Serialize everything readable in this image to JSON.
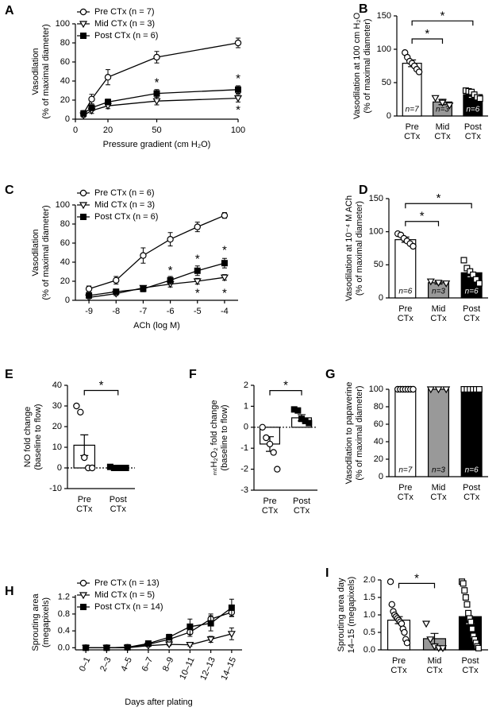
{
  "chart_data": [
    {
      "type": "line",
      "panel": "A",
      "xlabel": "Pressure gradient (cm H₂O)",
      "ylabel": [
        "Vasodilation",
        "(% of maximal diameter)"
      ],
      "x": [
        5,
        10,
        20,
        50,
        100
      ],
      "xlim": [
        0,
        100
      ],
      "xticks": [
        0,
        20,
        50,
        100
      ],
      "ylim": [
        0,
        100
      ],
      "yticks": [
        0,
        20,
        40,
        60,
        80,
        100
      ],
      "legend": "upper left",
      "series": [
        {
          "name": "Pre CTx (n = 7)",
          "color": "#000",
          "marker": "circle-open",
          "values": [
            6,
            21,
            44,
            65,
            80
          ],
          "errors": [
            3,
            5,
            8,
            6,
            5
          ]
        },
        {
          "name": "Mid CTx (n = 3)",
          "color": "#000",
          "marker": "triangle-open",
          "values": [
            4,
            9,
            14,
            19,
            22
          ],
          "errors": [
            2,
            3,
            3,
            4,
            4
          ]
        },
        {
          "name": "Post CTx (n = 6)",
          "color": "#000",
          "marker": "square-filled",
          "values": [
            6,
            12,
            18,
            27,
            31
          ],
          "errors": [
            2,
            3,
            3,
            4,
            4
          ]
        }
      ],
      "annotations": [
        {
          "text": "*",
          "x": 50,
          "y": 38
        },
        {
          "text": "*",
          "x": 100,
          "y": 42
        },
        {
          "text": "*",
          "x": 100,
          "y": 9
        }
      ]
    },
    {
      "type": "bar",
      "panel": "B",
      "ylabel": [
        "Vasodilation at 100 cm H₂O",
        "(% of maximal diameter)"
      ],
      "categories": [
        [
          "Pre",
          "CTx"
        ],
        [
          "Mid",
          "CTx"
        ],
        [
          "Post",
          "CTx"
        ]
      ],
      "values": [
        79,
        21,
        32
      ],
      "errors": [
        5,
        4,
        4
      ],
      "colors": [
        "#fff",
        "#999",
        "#000"
      ],
      "point_markers": [
        "circle-open",
        "triangle-open",
        "square-open"
      ],
      "points": [
        [
          95,
          88,
          82,
          79,
          75,
          70,
          66
        ],
        [
          27,
          20,
          16
        ],
        [
          38,
          37,
          36,
          32,
          28,
          26
        ]
      ],
      "bar_labels": [
        "n=7",
        "n=3",
        "n=6"
      ],
      "ylim": [
        0,
        150
      ],
      "yticks": [
        0,
        50,
        100,
        150
      ],
      "brackets": [
        {
          "from": 0,
          "to": 1,
          "text": "*"
        },
        {
          "from": 0,
          "to": 2,
          "text": "*"
        }
      ]
    },
    {
      "type": "line",
      "panel": "C",
      "xlabel": "ACh (log M)",
      "ylabel": [
        "Vasodilation",
        "(% of maximal diameter)"
      ],
      "x": [
        -9,
        -8,
        -7,
        -6,
        -5,
        -4
      ],
      "xlim": [
        -9.5,
        -3.5
      ],
      "xticks": [
        -9,
        -8,
        -7,
        -6,
        -5,
        -4
      ],
      "ylim": [
        0,
        100
      ],
      "yticks": [
        0,
        20,
        40,
        60,
        80,
        100
      ],
      "legend": "upper left",
      "series": [
        {
          "name": "Pre CTx (n = 6)",
          "color": "#000",
          "marker": "circle-open",
          "values": [
            12,
            21,
            47,
            64,
            77,
            89
          ],
          "errors": [
            3,
            4,
            8,
            7,
            5,
            3
          ]
        },
        {
          "name": "Mid CTx (n = 3)",
          "color": "#000",
          "marker": "triangle-open",
          "values": [
            3,
            7,
            13,
            17,
            20,
            24
          ],
          "errors": [
            1,
            2,
            2,
            3,
            3,
            3
          ]
        },
        {
          "name": "Post CTx (n = 6)",
          "color": "#000",
          "marker": "square-filled",
          "values": [
            5,
            9,
            12,
            21,
            31,
            39
          ],
          "errors": [
            1,
            2,
            3,
            4,
            5,
            5
          ]
        }
      ],
      "annotations": [
        {
          "text": "*",
          "x": -6,
          "y": 31
        },
        {
          "text": "*",
          "x": -5,
          "y": 43
        },
        {
          "text": "*",
          "x": -4,
          "y": 52
        },
        {
          "text": "*",
          "x": -5,
          "y": 7
        },
        {
          "text": "*",
          "x": -4,
          "y": 7
        }
      ]
    },
    {
      "type": "bar",
      "panel": "D",
      "ylabel": [
        "Vasodilation at 10⁻⁴ M ACh",
        "(% of maximal diameter)"
      ],
      "categories": [
        [
          "Pre",
          "CTx"
        ],
        [
          "Mid",
          "CTx"
        ],
        [
          "Post",
          "CTx"
        ]
      ],
      "values": [
        88,
        23,
        38
      ],
      "errors": [
        4,
        2,
        6
      ],
      "colors": [
        "#fff",
        "#999",
        "#000"
      ],
      "point_markers": [
        "circle-open",
        "triangle-open",
        "square-open"
      ],
      "points": [
        [
          97,
          95,
          90,
          86,
          82,
          78
        ],
        [
          25,
          23,
          22
        ],
        [
          57,
          45,
          40,
          35,
          28,
          22
        ]
      ],
      "bar_labels": [
        "n=6",
        "n=3",
        "n=6"
      ],
      "ylim": [
        0,
        150
      ],
      "yticks": [
        0,
        50,
        100,
        150
      ],
      "brackets": [
        {
          "from": 0,
          "to": 1,
          "text": "*"
        },
        {
          "from": 0,
          "to": 2,
          "text": "*"
        }
      ]
    },
    {
      "type": "bar",
      "panel": "E",
      "ylabel": [
        "NO fold change",
        "(baseline to flow)"
      ],
      "categories": [
        [
          "Pre",
          "CTx"
        ],
        [
          "Post",
          "CTx"
        ]
      ],
      "values": [
        11,
        0.2
      ],
      "errors": [
        5,
        0.3
      ],
      "colors": [
        "#fff",
        "#fff"
      ],
      "point_markers": [
        "circle-open",
        "square-filled"
      ],
      "points": [
        [
          30,
          27,
          5,
          0,
          0
        ],
        [
          0.5,
          0,
          0,
          0,
          0
        ]
      ],
      "zero_line": true,
      "ylim": [
        -10,
        40
      ],
      "yticks": [
        -10,
        0,
        10,
        20,
        30,
        40
      ],
      "brackets": [
        {
          "from": 0,
          "to": 1,
          "text": "*"
        }
      ]
    },
    {
      "type": "bar",
      "panel": "F",
      "ylabel": [
        "ₘₜH₂O₂ fold change",
        "(baseline to flow)"
      ],
      "categories": [
        [
          "Pre",
          "CTx"
        ],
        [
          "Post",
          "CTx"
        ]
      ],
      "values": [
        -0.8,
        0.45
      ],
      "errors": [
        0.35,
        0.15
      ],
      "colors": [
        "#fff",
        "#fff"
      ],
      "point_markers": [
        "circle-open",
        "square-filled"
      ],
      "points": [
        [
          0,
          -0.5,
          -0.8,
          -1.2,
          -2
        ],
        [
          0.85,
          0.8,
          0.4,
          0.3,
          0.2
        ]
      ],
      "zero_line": true,
      "ylim": [
        -3,
        2
      ],
      "yticks": [
        -3,
        -2,
        -1,
        0,
        1,
        2
      ],
      "brackets": [
        {
          "from": 0,
          "to": 1,
          "text": "*"
        }
      ]
    },
    {
      "type": "bar",
      "panel": "G",
      "ylabel": [
        "Vasodilation to papaverine",
        "(% of maximal diameter)"
      ],
      "categories": [
        [
          "Pre",
          "CTx"
        ],
        [
          "Mid",
          "CTx"
        ],
        [
          "Post",
          "CTx"
        ]
      ],
      "values": [
        100,
        100,
        100
      ],
      "colors": [
        "#fff",
        "#999",
        "#000"
      ],
      "point_markers": [
        "circle-open",
        "triangle-open",
        "square-open"
      ],
      "points": [
        [
          100,
          100,
          100,
          100,
          100,
          100,
          100
        ],
        [
          100,
          100,
          100
        ],
        [
          100,
          100,
          100,
          100,
          100,
          100
        ]
      ],
      "bar_labels": [
        "n=7",
        "n=3",
        "n=6"
      ],
      "ylim": [
        0,
        100
      ],
      "yticks": [
        0,
        20,
        40,
        60,
        80,
        100
      ]
    },
    {
      "type": "line",
      "panel": "H",
      "xlabel": "Days after plating",
      "ylabel": [
        "Sprouting area",
        "(megapixels)"
      ],
      "categories": [
        "0–1",
        "2–3",
        "4–5",
        "6–7",
        "8–9",
        "10–11",
        "12–13",
        "14–15"
      ],
      "ylim": [
        -0.05,
        1.25
      ],
      "yticks": [
        {
          "value": 0,
          "label": "0.0"
        },
        0.4,
        0.8,
        1.2
      ],
      "legend": "upper left",
      "series": [
        {
          "name": "Pre CTx (n = 13)",
          "color": "#000",
          "marker": "circle-open",
          "values": [
            0,
            0,
            0.01,
            0.08,
            0.2,
            0.37,
            0.68,
            0.84
          ],
          "errors": [
            0,
            0,
            0.01,
            0.03,
            0.06,
            0.1,
            0.12,
            0.1
          ]
        },
        {
          "name": "Mid CTx (n = 5)",
          "color": "#000",
          "marker": "triangle-open",
          "values": [
            0,
            0,
            0,
            0.05,
            0.08,
            0.07,
            0.2,
            0.33
          ],
          "errors": [
            0,
            0,
            0,
            0.02,
            0.03,
            0.03,
            0.07,
            0.14
          ]
        },
        {
          "name": "Post CTx (n = 14)",
          "color": "#000",
          "marker": "square-filled",
          "values": [
            0,
            0,
            0.01,
            0.1,
            0.25,
            0.5,
            0.58,
            0.95
          ],
          "errors": [
            0,
            0,
            0.01,
            0.03,
            0.07,
            0.18,
            0.18,
            0.2
          ]
        }
      ]
    },
    {
      "type": "bar",
      "panel": "I",
      "ylabel": [
        "Sprouting area day",
        "14–15 (megapixels)"
      ],
      "categories": [
        [
          "Pre",
          "CTx"
        ],
        [
          "Mid",
          "CTx"
        ],
        [
          "Post",
          "CTx"
        ]
      ],
      "values": [
        0.85,
        0.32,
        0.95
      ],
      "errors": [
        0.1,
        0.15,
        0.2
      ],
      "colors": [
        "#fff",
        "#999",
        "#000"
      ],
      "point_markers": [
        "circle-open",
        "triangle-open",
        "square-open"
      ],
      "points": [
        [
          1.95,
          1.3,
          1.1,
          1.0,
          0.95,
          0.9,
          0.85,
          0.8,
          0.75,
          0.6,
          0.5,
          0.3,
          0.2
        ],
        [
          0.75,
          0.3,
          0.1,
          0.05,
          0.05
        ],
        [
          1.95,
          1.9,
          1.7,
          1.5,
          1.3,
          1.05,
          0.9,
          0.8,
          0.6,
          0.4,
          0.3,
          0.2,
          0.1,
          0.05
        ]
      ],
      "ylim": [
        0,
        2.0
      ],
      "yticks": [
        {
          "value": 0,
          "label": "0.0"
        },
        0.5,
        {
          "value": 1,
          "label": "1.0"
        },
        1.5,
        {
          "value": 2,
          "label": "2.0"
        }
      ],
      "brackets": [
        {
          "from": 0,
          "to": 1,
          "text": "*"
        }
      ]
    }
  ]
}
